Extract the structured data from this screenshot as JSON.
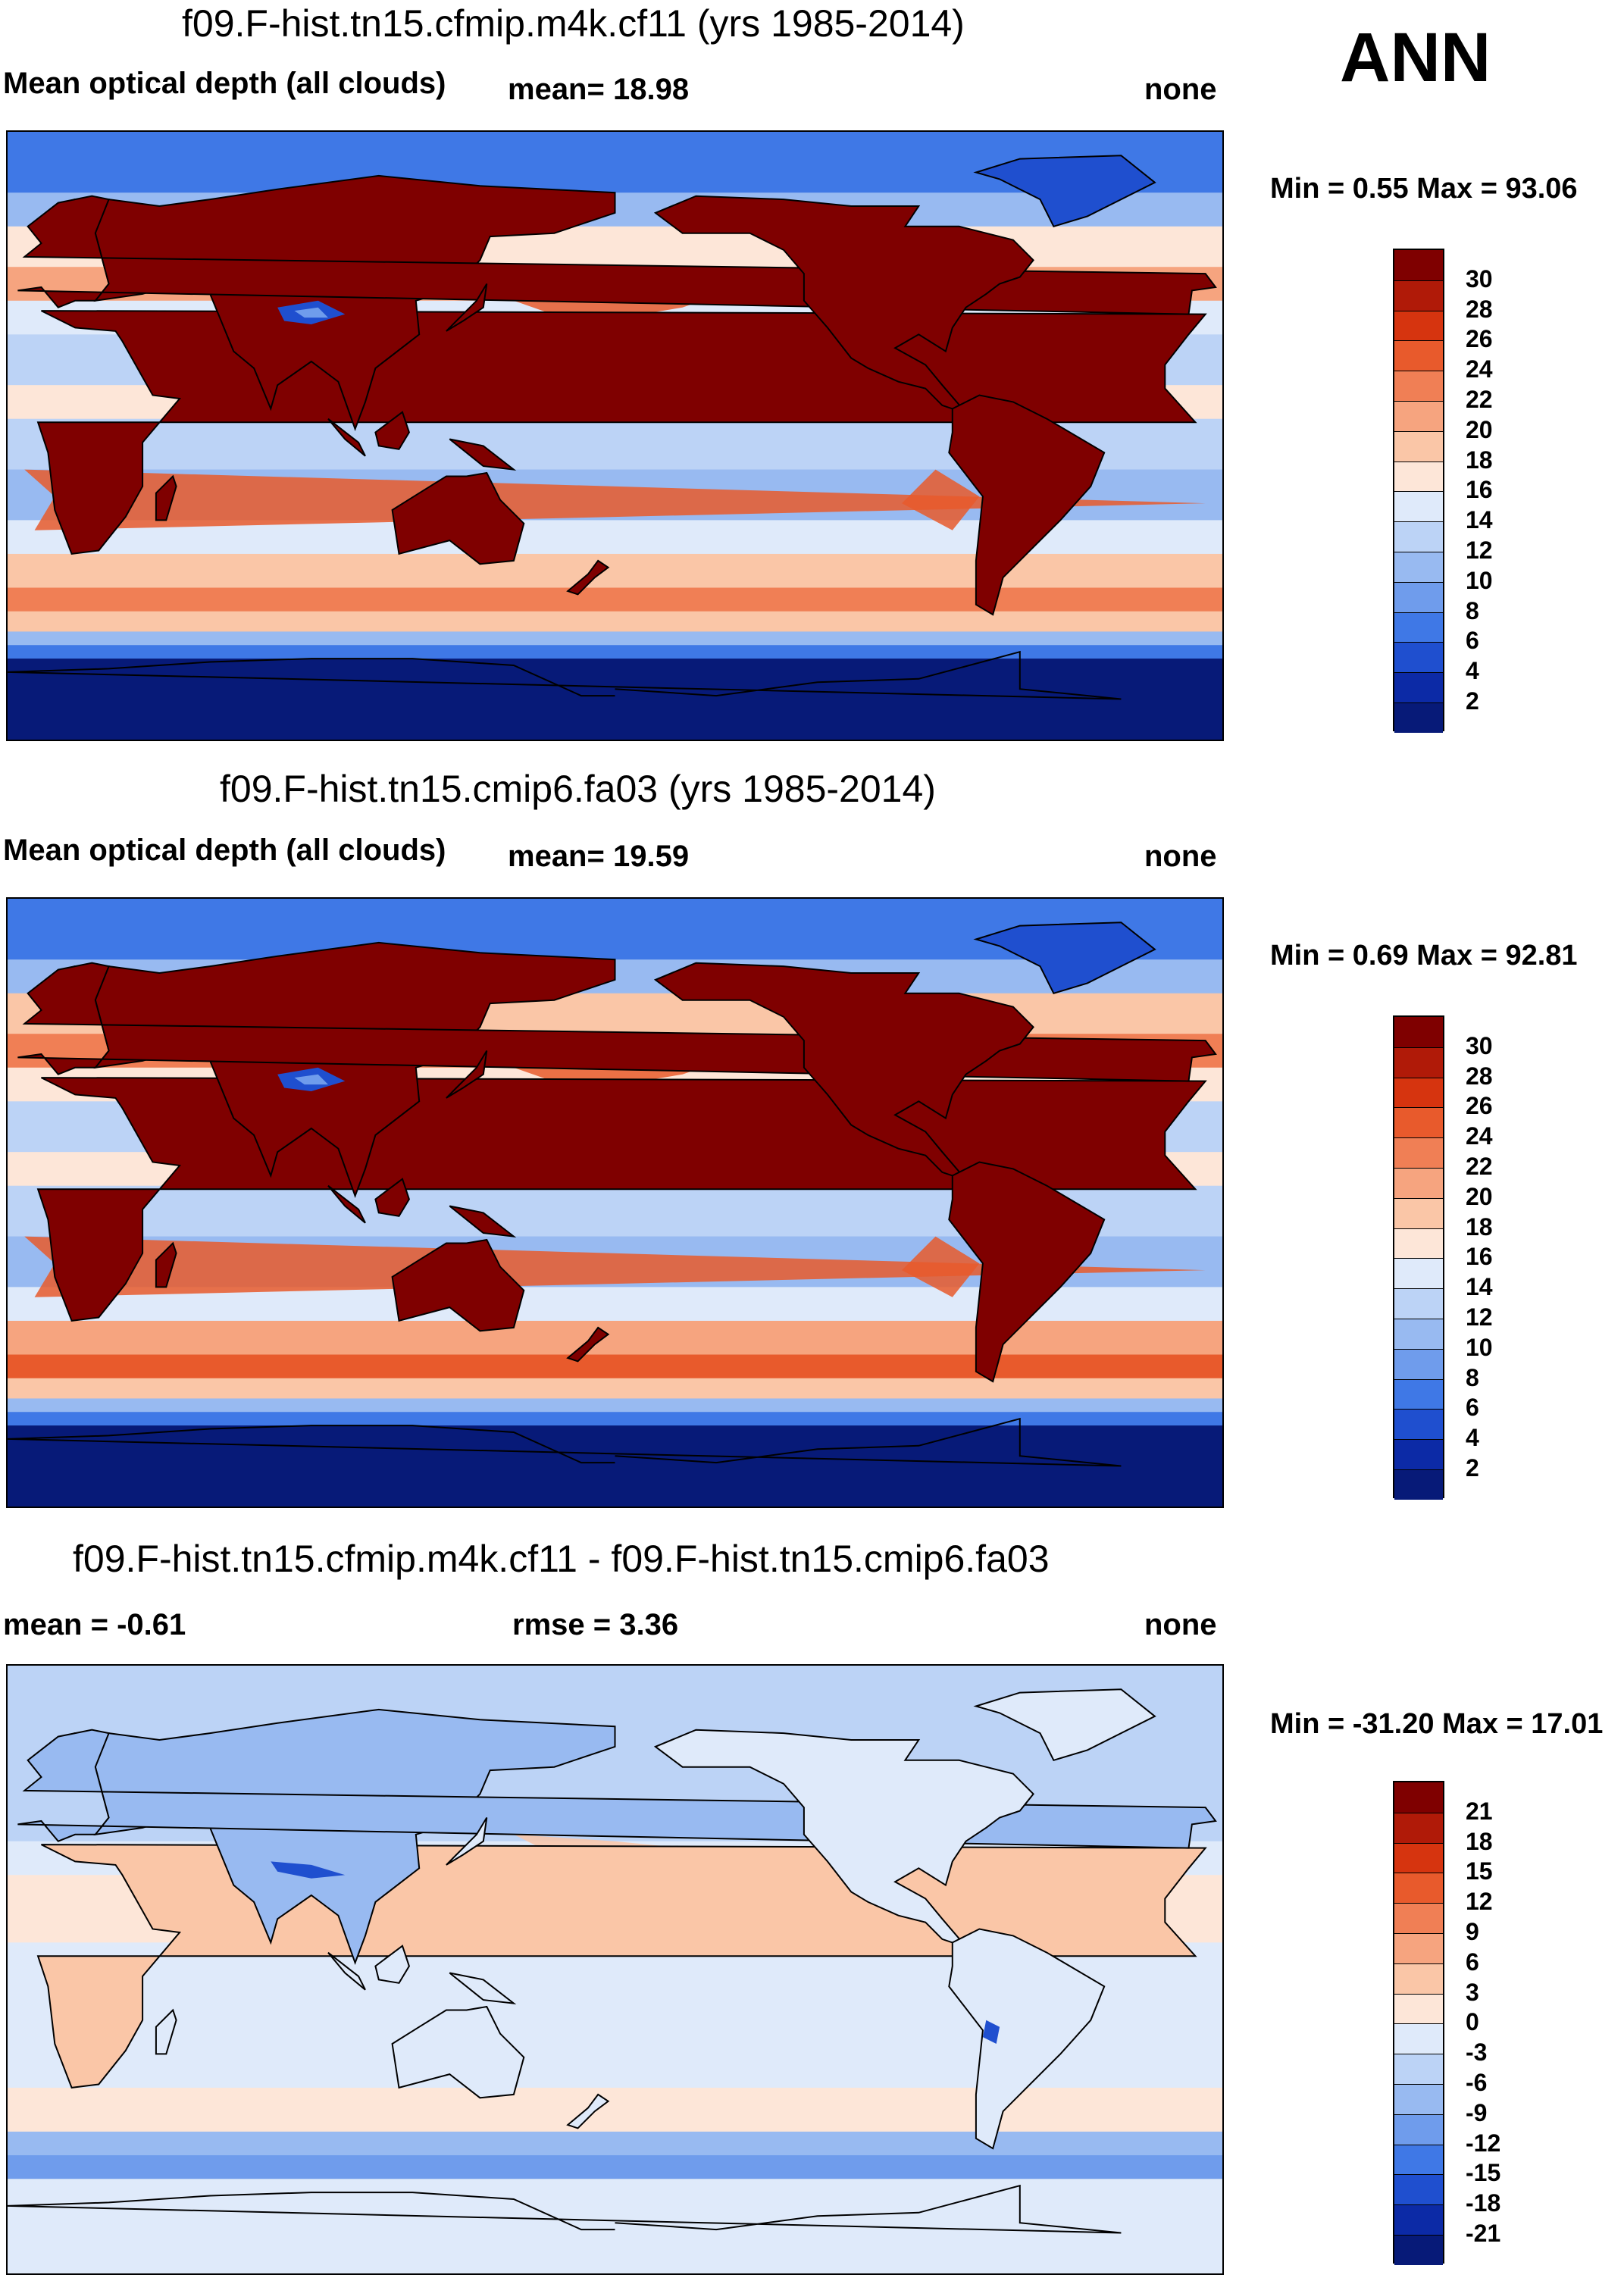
{
  "season": "ANN",
  "panels": [
    {
      "title": "f09.F-hist.tn15.cfmip.m4k.cf11 (yrs 1985-2014)",
      "left_label": "Mean optical depth (all clouds)",
      "mean_label": "mean=  18.98",
      "units": "none",
      "minmax": "Min =   0.55 Max =  93.06",
      "colorbar_labels": [
        "30",
        "28",
        "26",
        "24",
        "22",
        "20",
        "18",
        "16",
        "14",
        "12",
        "10",
        "8",
        "6",
        "4",
        "2"
      ],
      "colors": [
        "#7f0000",
        "#b01a08",
        "#d6340f",
        "#e85a2c",
        "#f07f55",
        "#f6a47f",
        "#fac6a7",
        "#fde6d8",
        "#dfeafa",
        "#bcd3f6",
        "#98baf1",
        "#6f9cec",
        "#3f78e6",
        "#1f4fcf",
        "#0c2aa6",
        "#071a78"
      ]
    },
    {
      "title": "f09.F-hist.tn15.cmip6.fa03 (yrs 1985-2014)",
      "left_label": "Mean optical depth (all clouds)",
      "mean_label": "mean=  19.59",
      "units": "none",
      "minmax": "Min =   0.69 Max =  92.81",
      "colorbar_labels": [
        "30",
        "28",
        "26",
        "24",
        "22",
        "20",
        "18",
        "16",
        "14",
        "12",
        "10",
        "8",
        "6",
        "4",
        "2"
      ],
      "colors": [
        "#7f0000",
        "#b01a08",
        "#d6340f",
        "#e85a2c",
        "#f07f55",
        "#f6a47f",
        "#fac6a7",
        "#fde6d8",
        "#dfeafa",
        "#bcd3f6",
        "#98baf1",
        "#6f9cec",
        "#3f78e6",
        "#1f4fcf",
        "#0c2aa6",
        "#071a78"
      ]
    },
    {
      "title": "f09.F-hist.tn15.cfmip.m4k.cf11 - f09.F-hist.tn15.cmip6.fa03",
      "left_label": "mean =  -0.61",
      "mean_label": "rmse =   3.36",
      "units": "none",
      "minmax": "Min = -31.20 Max =  17.01",
      "colorbar_labels": [
        "21",
        "18",
        "15",
        "12",
        "9",
        "6",
        "3",
        "0",
        "-3",
        "-6",
        "-9",
        "-12",
        "-15",
        "-18",
        "-21"
      ],
      "colors": [
        "#7f0000",
        "#b01a08",
        "#d6340f",
        "#e85a2c",
        "#f07f55",
        "#f6a47f",
        "#fac6a7",
        "#fde6d8",
        "#dfeafa",
        "#bcd3f6",
        "#98baf1",
        "#6f9cec",
        "#3f78e6",
        "#1f4fcf",
        "#0c2aa6",
        "#071a78"
      ]
    }
  ]
}
